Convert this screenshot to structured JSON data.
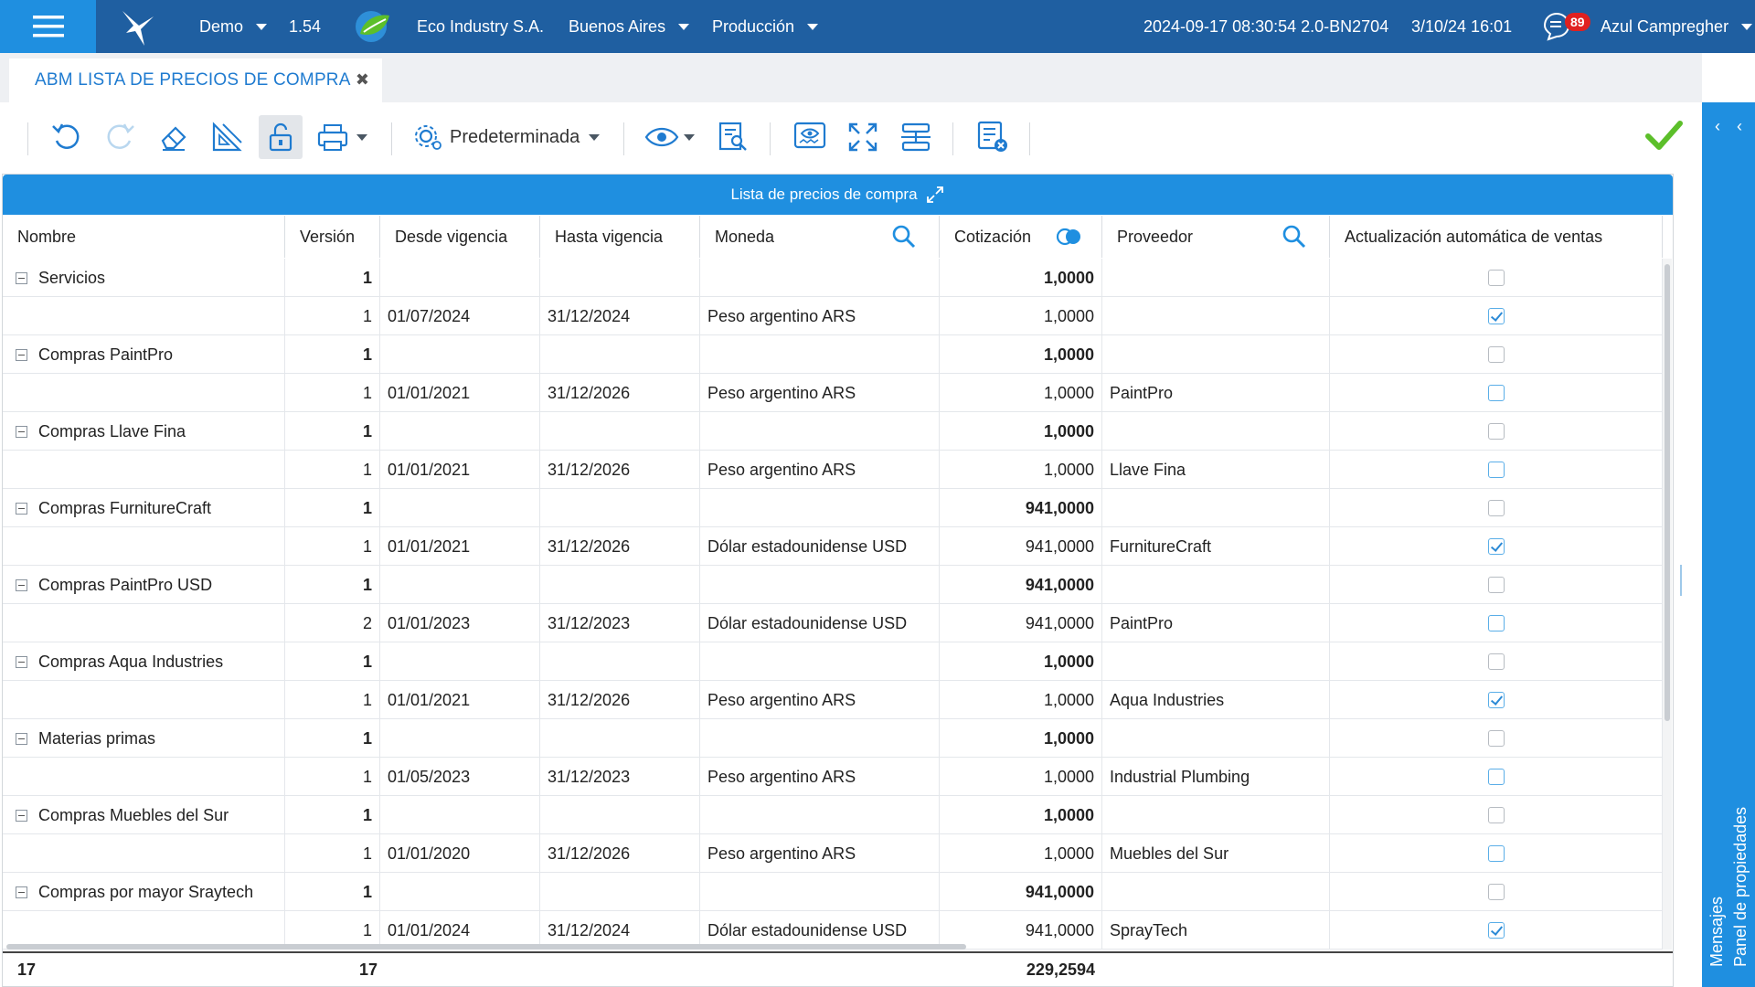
{
  "topbar": {
    "env": "Demo",
    "version": "1.54",
    "company": "Eco Industry S.A.",
    "location": "Buenos Aires",
    "mode": "Producción",
    "build": "2024-09-17 08:30:54 2.0-BN2704",
    "datetime": "3/10/24 16:01",
    "notifications": "89",
    "user": "Azul Campregher"
  },
  "tab": {
    "title": "ABM LISTA DE PRECIOS DE COMPRA",
    "close": "✖"
  },
  "toolbar": {
    "preset_label": "Predeterminada"
  },
  "grid": {
    "title": "Lista de precios de compra",
    "columns": [
      "Nombre",
      "Versión",
      "Desde vigencia",
      "Hasta vigencia",
      "Moneda",
      "Cotización",
      "Proveedor",
      "Actualización automática de ventas"
    ],
    "rows": [
      {
        "group": true,
        "name": "Servicios",
        "version": "1",
        "from": "",
        "to": "",
        "currency": "",
        "rate": "1,0000",
        "supplier": "",
        "checked": false
      },
      {
        "group": false,
        "name": "",
        "version": "1",
        "from": "01/07/2024",
        "to": "31/12/2024",
        "currency": "Peso argentino ARS",
        "rate": "1,0000",
        "supplier": "",
        "checked": true
      },
      {
        "group": true,
        "name": "Compras PaintPro",
        "version": "1",
        "from": "",
        "to": "",
        "currency": "",
        "rate": "1,0000",
        "supplier": "",
        "checked": false
      },
      {
        "group": false,
        "name": "",
        "version": "1",
        "from": "01/01/2021",
        "to": "31/12/2026",
        "currency": "Peso argentino ARS",
        "rate": "1,0000",
        "supplier": "PaintPro",
        "checked": false
      },
      {
        "group": true,
        "name": "Compras Llave Fina",
        "version": "1",
        "from": "",
        "to": "",
        "currency": "",
        "rate": "1,0000",
        "supplier": "",
        "checked": false
      },
      {
        "group": false,
        "name": "",
        "version": "1",
        "from": "01/01/2021",
        "to": "31/12/2026",
        "currency": "Peso argentino ARS",
        "rate": "1,0000",
        "supplier": "Llave Fina",
        "checked": false
      },
      {
        "group": true,
        "name": "Compras FurnitureCraft",
        "version": "1",
        "from": "",
        "to": "",
        "currency": "",
        "rate": "941,0000",
        "supplier": "",
        "checked": false
      },
      {
        "group": false,
        "name": "",
        "version": "1",
        "from": "01/01/2021",
        "to": "31/12/2026",
        "currency": "Dólar estadounidense USD",
        "rate": "941,0000",
        "supplier": "FurnitureCraft",
        "checked": true
      },
      {
        "group": true,
        "name": "Compras PaintPro USD",
        "version": "1",
        "from": "",
        "to": "",
        "currency": "",
        "rate": "941,0000",
        "supplier": "",
        "checked": false
      },
      {
        "group": false,
        "name": "",
        "version": "2",
        "from": "01/01/2023",
        "to": "31/12/2023",
        "currency": "Dólar estadounidense USD",
        "rate": "941,0000",
        "supplier": "PaintPro",
        "checked": false
      },
      {
        "group": true,
        "name": "Compras Aqua Industries",
        "version": "1",
        "from": "",
        "to": "",
        "currency": "",
        "rate": "1,0000",
        "supplier": "",
        "checked": false
      },
      {
        "group": false,
        "name": "",
        "version": "1",
        "from": "01/01/2021",
        "to": "31/12/2026",
        "currency": "Peso argentino ARS",
        "rate": "1,0000",
        "supplier": "Aqua Industries",
        "checked": true
      },
      {
        "group": true,
        "name": "Materias primas",
        "version": "1",
        "from": "",
        "to": "",
        "currency": "",
        "rate": "1,0000",
        "supplier": "",
        "checked": false
      },
      {
        "group": false,
        "name": "",
        "version": "1",
        "from": "01/05/2023",
        "to": "31/12/2023",
        "currency": "Peso argentino ARS",
        "rate": "1,0000",
        "supplier": "Industrial Plumbing",
        "checked": false
      },
      {
        "group": true,
        "name": "Compras Muebles del Sur",
        "version": "1",
        "from": "",
        "to": "",
        "currency": "",
        "rate": "1,0000",
        "supplier": "",
        "checked": false
      },
      {
        "group": false,
        "name": "",
        "version": "1",
        "from": "01/01/2020",
        "to": "31/12/2026",
        "currency": "Peso argentino ARS",
        "rate": "1,0000",
        "supplier": "Muebles del Sur",
        "checked": false
      },
      {
        "group": true,
        "name": "Compras por mayor Sraytech",
        "version": "1",
        "from": "",
        "to": "",
        "currency": "",
        "rate": "941,0000",
        "supplier": "",
        "checked": false
      },
      {
        "group": false,
        "name": "",
        "version": "1",
        "from": "01/01/2024",
        "to": "31/12/2024",
        "currency": "Dólar estadounidense USD",
        "rate": "941,0000",
        "supplier": "SprayTech",
        "checked": true
      }
    ],
    "footer": {
      "count": "17",
      "version_total": "17",
      "rate_total": "229,2594"
    }
  },
  "sidepanel": {
    "messages": "Mensajes",
    "properties": "Panel de propiedades"
  },
  "colors": {
    "topbar": "#1f5fa1",
    "accent": "#1f8fe0",
    "ok_green": "#5cbf2a",
    "badge": "#e02020"
  }
}
